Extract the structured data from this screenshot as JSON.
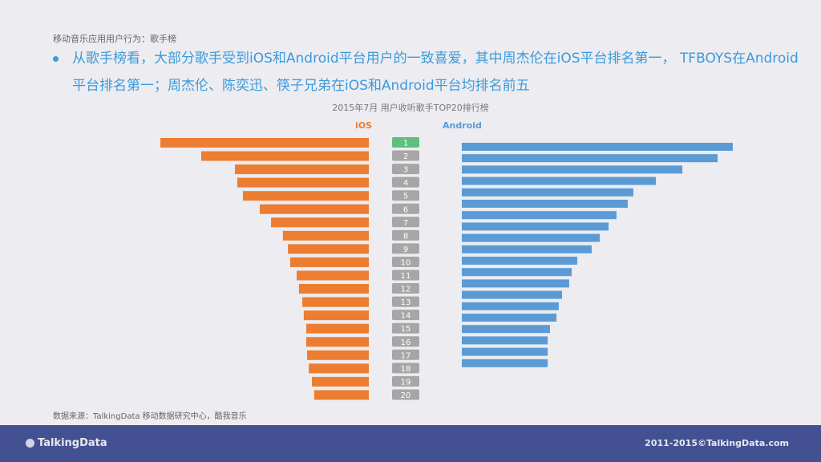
{
  "header": {
    "subtitle": "移动音乐应用用户行为：歌手榜",
    "bullet": "从歌手榜看，大部分歌手受到iOS和Android平台用户的一致喜爱，其中周杰伦在iOS平台排名第一， TFBOYS在Android平台排名第一；周杰伦、陈奕迅、筷子兄弟在iOS和Android平台均排名前五"
  },
  "chart_data": {
    "type": "bar",
    "title": "2015年7月 用户收听歌手TOP20排行榜",
    "orientation": "horizontal-butterfly",
    "categories": [
      "1",
      "2",
      "3",
      "4",
      "5",
      "6",
      "7",
      "8",
      "9",
      "10",
      "11",
      "12",
      "13",
      "14",
      "15",
      "16",
      "17",
      "18",
      "19",
      "20"
    ],
    "value_note": "relative bar length, iOS rank 1 = 100; no values printed",
    "series": [
      {
        "name": "iOS",
        "color": "#ec7d31",
        "values": [
          100,
          80.4,
          64.2,
          63.1,
          60.4,
          52.3,
          46.9,
          41.2,
          38.8,
          37.7,
          34.6,
          33.5,
          31.9,
          31.2,
          30.0,
          30.0,
          29.6,
          28.8,
          27.3,
          26.2
        ]
      },
      {
        "name": "Android",
        "color": "#5b9bd5",
        "values": [
          130,
          122.7,
          105.8,
          93.1,
          82.3,
          79.6,
          74.2,
          70.4,
          66.2,
          62.3,
          55.4,
          52.7,
          51.5,
          48.1,
          46.5,
          45.4,
          42.3,
          41.2,
          41.2,
          41.2
        ]
      }
    ],
    "rank_badge_colors": {
      "first": "#5fbf7f",
      "other": "#a6a6a6"
    },
    "grid": false,
    "legend": "top"
  },
  "footer": {
    "source": "数据来源：TalkingData 移动数据研究中心，酷我音乐",
    "logo": "TalkingData",
    "copyright": "2011-2015©TalkingData.com",
    "bg_color": "#435193"
  }
}
